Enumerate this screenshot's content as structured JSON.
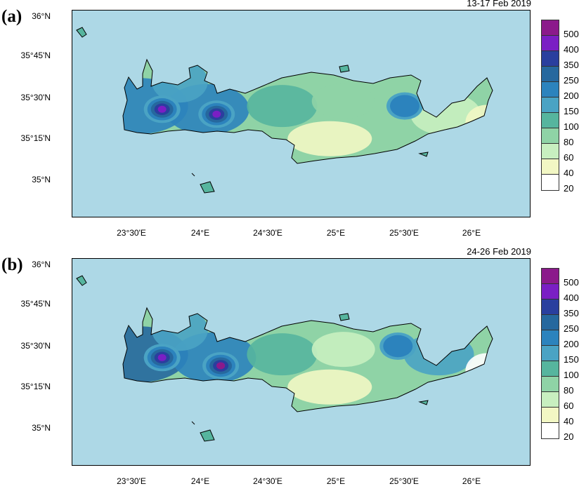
{
  "panels": [
    {
      "letter": "(a)",
      "period": "13-17 Feb 2019",
      "hotspots": [
        {
          "lon": 23.72,
          "lat": 35.43,
          "value": 400
        },
        {
          "lon": 24.12,
          "lat": 35.4,
          "value": 400
        },
        {
          "lon": 25.5,
          "lat": 35.45,
          "value": 200
        }
      ]
    },
    {
      "letter": "(b)",
      "period": "24-26 Feb 2019",
      "hotspots": [
        {
          "lon": 23.72,
          "lat": 35.43,
          "value": 400
        },
        {
          "lon": 24.15,
          "lat": 35.38,
          "value": 500
        },
        {
          "lon": 25.45,
          "lat": 35.5,
          "value": 200
        }
      ]
    }
  ],
  "latitude_labels": [
    "36°N",
    "35°45'N",
    "35°30'N",
    "35°15'N",
    "35°N"
  ],
  "longitude_labels": [
    "23°30'E",
    "24°E",
    "24°30'E",
    "25°E",
    "25°30'E",
    "26°E"
  ],
  "colorbar": {
    "levels": [
      "500",
      "400",
      "350",
      "250",
      "200",
      "150",
      "100",
      "80",
      "60",
      "40",
      "20"
    ],
    "colors": [
      "#8b1a8b",
      "#7a1fc4",
      "#2a3f9e",
      "#26689e",
      "#2c83bd",
      "#4aa3c4",
      "#56b59e",
      "#8fd3a6",
      "#c8efc0",
      "#f2f7c4",
      "#ffffff"
    ]
  },
  "colors": {
    "sea": "#add8e6",
    "coastline": "#000000"
  }
}
